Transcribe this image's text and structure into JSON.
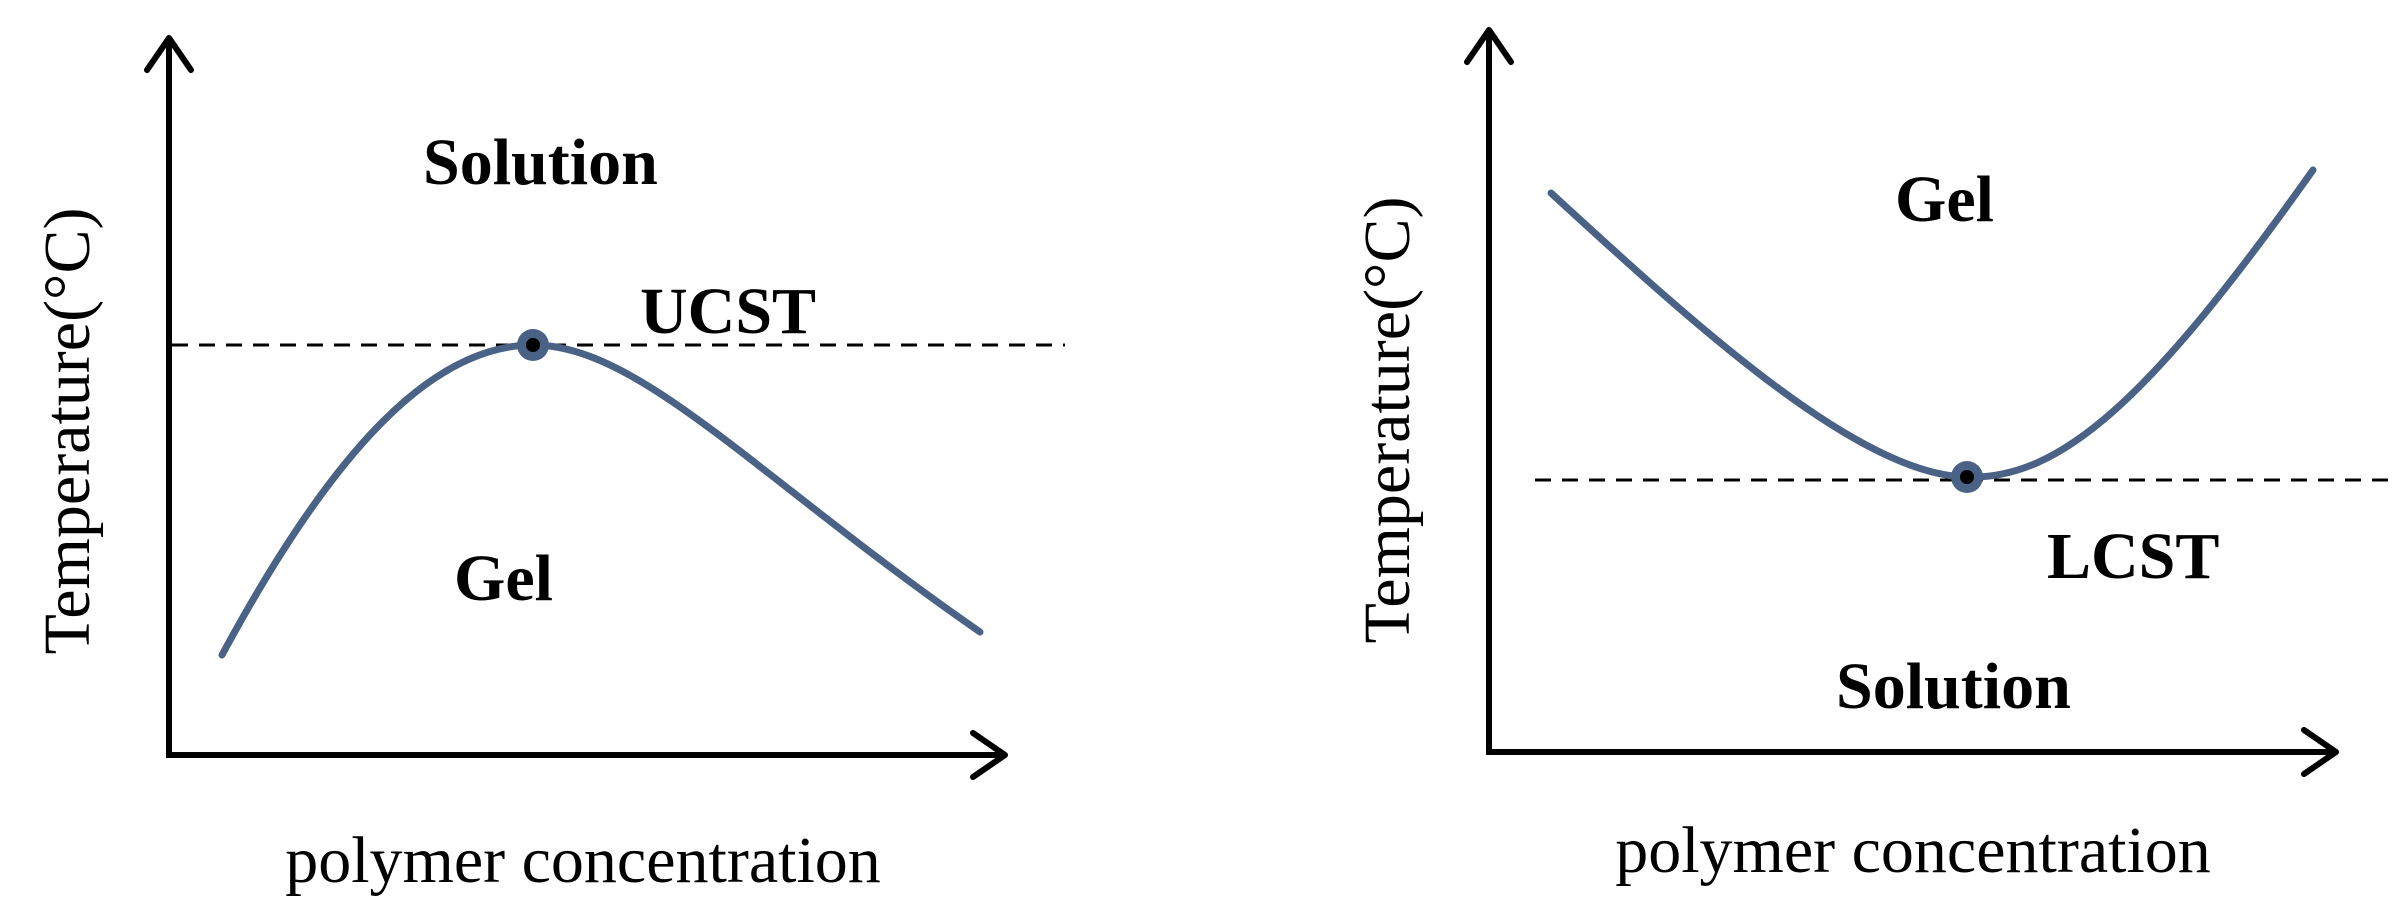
{
  "colors": {
    "curve": "#4a6286",
    "axis": "#000000",
    "background": "#ffffff"
  },
  "panels": [
    {
      "id": "ucst",
      "y_axis_label": "Temperature(°C)",
      "x_axis_label": "polymer concentration",
      "upper_region_label": "Solution",
      "lower_region_label": "Gel",
      "threshold_label": "UCST",
      "curve_shape": "maximum"
    },
    {
      "id": "lcst",
      "y_axis_label": "Temperature(°C)",
      "x_axis_label": "polymer concentration",
      "upper_region_label": "Gel",
      "lower_region_label": "Solution",
      "threshold_label": "LCST",
      "curve_shape": "minimum"
    }
  ]
}
